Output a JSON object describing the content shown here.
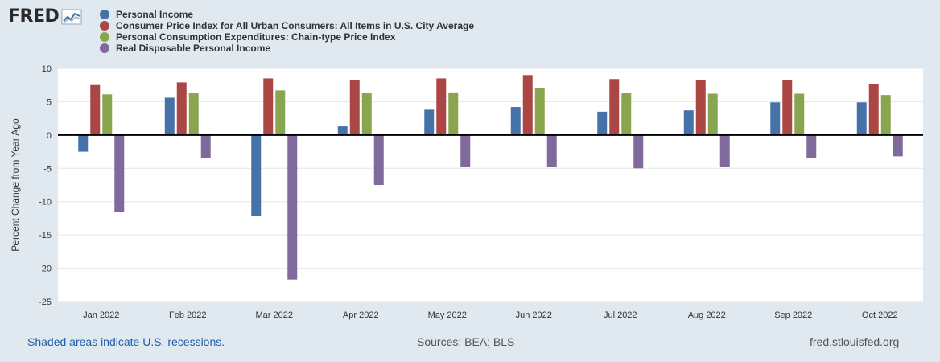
{
  "logo": {
    "text": "FRED",
    "icon": "line-chart-icon"
  },
  "colors": {
    "background": "#e1e9f0",
    "plot": "#ffffff",
    "grid": "#e6e6e6",
    "zero_line": "#000000",
    "link": "#1e5ea8"
  },
  "footer": {
    "recession_note": "Shaded areas indicate U.S. recessions.",
    "sources": "Sources: BEA; BLS",
    "site": "fred.stlouisfed.org"
  },
  "chart_data": {
    "type": "bar",
    "title": "",
    "xlabel": "",
    "ylabel": "Percent Change from Year Ago",
    "ylim": [
      -25,
      10
    ],
    "yticks": [
      10,
      5,
      0,
      -5,
      -10,
      -15,
      -20,
      -25
    ],
    "grid": true,
    "legend": "top-left",
    "categories": [
      "Jan 2022",
      "Feb 2022",
      "Mar 2022",
      "Apr 2022",
      "May 2022",
      "Jun 2022",
      "Jul 2022",
      "Aug 2022",
      "Sep 2022",
      "Oct 2022"
    ],
    "series": [
      {
        "name": "Personal Income",
        "color": "#4572a7",
        "values": [
          -2.5,
          5.6,
          -12.2,
          1.3,
          3.8,
          4.2,
          3.5,
          3.7,
          4.9,
          4.9
        ]
      },
      {
        "name": "Consumer Price Index for All Urban Consumers: All Items in U.S. City Average",
        "color": "#aa4643",
        "values": [
          7.5,
          7.9,
          8.5,
          8.2,
          8.5,
          9.0,
          8.4,
          8.2,
          8.2,
          7.7
        ]
      },
      {
        "name": "Personal Consumption Expenditures: Chain-type Price Index",
        "color": "#89a54e",
        "values": [
          6.1,
          6.3,
          6.7,
          6.3,
          6.4,
          7.0,
          6.3,
          6.2,
          6.2,
          6.0
        ]
      },
      {
        "name": "Real Disposable Personal Income",
        "color": "#80699b",
        "values": [
          -11.6,
          -3.5,
          -21.7,
          -7.5,
          -4.8,
          -4.8,
          -5.0,
          -4.8,
          -3.5,
          -3.2
        ]
      }
    ]
  }
}
